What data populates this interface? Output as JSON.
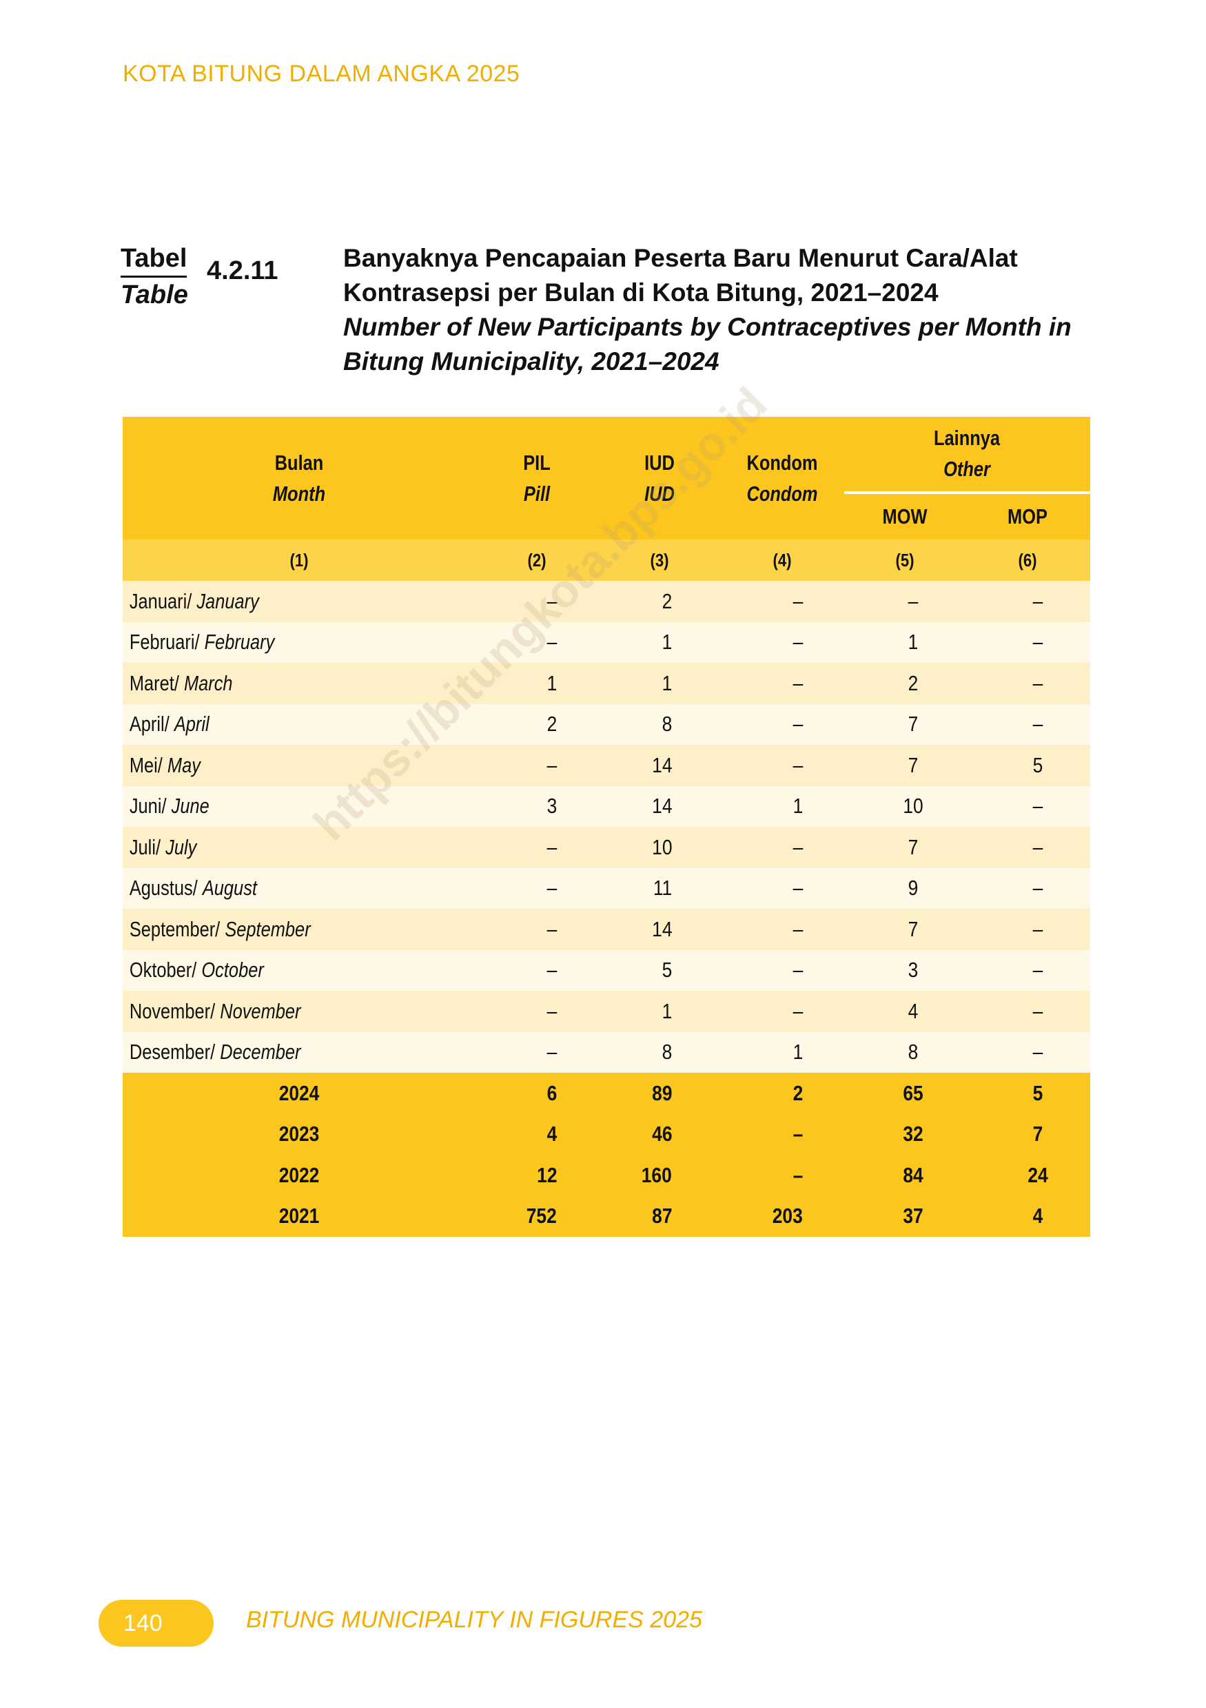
{
  "running_header": "KOTA BITUNG DALAM ANGKA 2025",
  "table_label": {
    "id": "Tabel",
    "en": "Table",
    "number": "4.2.11"
  },
  "title": {
    "id": "Banyaknya Pencapaian Peserta Baru Menurut Cara/Alat Kontrasepsi per Bulan di Kota Bitung, 2021–2024",
    "en": "Number of New Participants by Contraceptives per Month in Bitung Municipality, 2021–2024"
  },
  "columns": {
    "month": {
      "id": "Bulan",
      "en": "Month"
    },
    "pil": {
      "id": "PIL",
      "en": "Pill"
    },
    "iud": {
      "id": "IUD",
      "en": "IUD"
    },
    "kondom": {
      "id": "Kondom",
      "en": "Condom"
    },
    "other": {
      "id": "Lainnya",
      "en": "Other"
    },
    "mow": "MOW",
    "mop": "MOP",
    "numbers": [
      "(1)",
      "(2)",
      "(3)",
      "(4)",
      "(5)",
      "(6)"
    ]
  },
  "rows": [
    {
      "id": "Januari/ ",
      "en": "January",
      "v": [
        "–",
        "2",
        "–",
        "–",
        "–"
      ]
    },
    {
      "id": "Februari/ ",
      "en": "February",
      "v": [
        "–",
        "1",
        "–",
        "1",
        "–"
      ]
    },
    {
      "id": "Maret/ ",
      "en": "March",
      "v": [
        "1",
        "1",
        "–",
        "2",
        "–"
      ]
    },
    {
      "id": "April/ ",
      "en": "April",
      "v": [
        "2",
        "8",
        "–",
        "7",
        "–"
      ]
    },
    {
      "id": "Mei/ ",
      "en": "May",
      "v": [
        "–",
        "14",
        "–",
        "7",
        "5"
      ]
    },
    {
      "id": "Juni/ ",
      "en": "June",
      "v": [
        "3",
        "14",
        "1",
        "10",
        "–"
      ]
    },
    {
      "id": "Juli/ ",
      "en": "July",
      "v": [
        "–",
        "10",
        "–",
        "7",
        "–"
      ]
    },
    {
      "id": "Agustus/ ",
      "en": "August",
      "v": [
        "–",
        "11",
        "–",
        "9",
        "–"
      ]
    },
    {
      "id": "September/ ",
      "en": "September",
      "v": [
        "–",
        "14",
        "–",
        "7",
        "–"
      ]
    },
    {
      "id": "Oktober/ ",
      "en": "October",
      "v": [
        "–",
        "5",
        "–",
        "3",
        "–"
      ]
    },
    {
      "id": "November/ ",
      "en": "November",
      "v": [
        "–",
        "1",
        "–",
        "4",
        "–"
      ]
    },
    {
      "id": "Desember/ ",
      "en": "December",
      "v": [
        "–",
        "8",
        "1",
        "8",
        "–"
      ]
    }
  ],
  "totals": [
    {
      "year": "2024",
      "v": [
        "6",
        "89",
        "2",
        "65",
        "5"
      ]
    },
    {
      "year": "2023",
      "v": [
        "4",
        "46",
        "–",
        "32",
        "7"
      ]
    },
    {
      "year": "2022",
      "v": [
        "12",
        "160",
        "–",
        "84",
        "24"
      ]
    },
    {
      "year": "2021",
      "v": [
        "752",
        "87",
        "203",
        "37",
        "4"
      ]
    }
  ],
  "watermark": "https://bitungkota.bps.go.id",
  "footer": {
    "page": "140",
    "title": "BITUNG MUNICIPALITY IN FIGURES 2025"
  },
  "colors": {
    "accent": "#fcc61e",
    "header_text": "#f2ae00"
  }
}
